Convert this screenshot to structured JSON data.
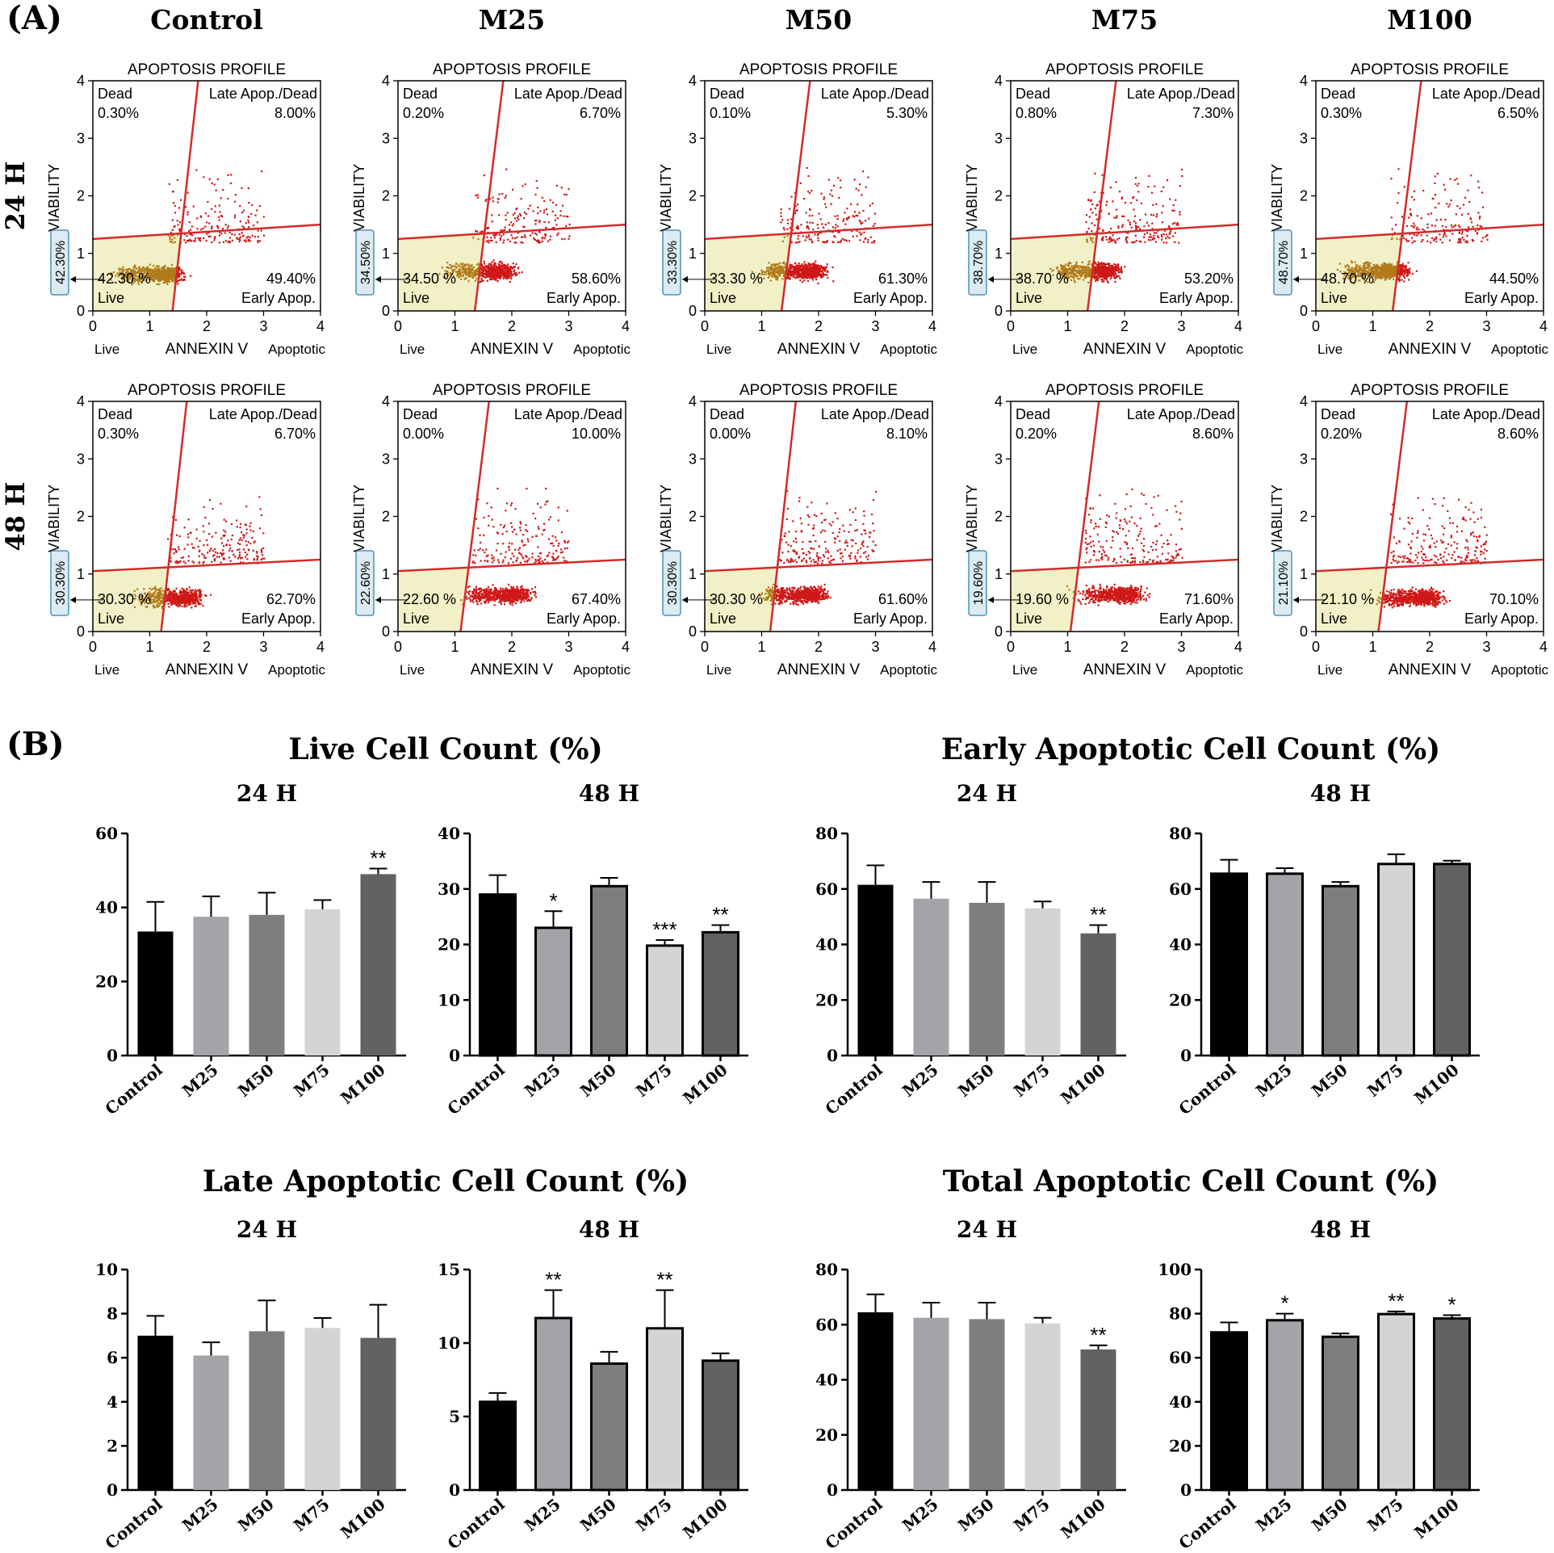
{
  "panel_a": {
    "label": "(A)",
    "columns": [
      "Control",
      "M25",
      "M50",
      "M75",
      "M100"
    ],
    "rows": [
      "24 H",
      "48 H"
    ],
    "plot_title": "APOPTOSIS PROFILE",
    "x_axis_label": "ANNEXIN V",
    "y_axis_label": "VIABILITY",
    "x_left_label": "Live",
    "x_right_label": "Apoptotic",
    "quadrant_names": {
      "ul": "Dead",
      "ur": "Late Apop./Dead",
      "ll": "Live",
      "lr": "Early Apop."
    },
    "ticks": [
      "0",
      "1",
      "2",
      "3",
      "4"
    ]
  },
  "panel_b": {
    "label": "(B)",
    "titles": {
      "live": "Live Cell Count (%)",
      "early": "Early Apoptotic Cell Count (%)",
      "late": "Late Apoptotic Cell Count (%)",
      "total": "Total Apoptotic Cell Count (%)"
    },
    "subtitles": [
      "24 H",
      "48 H"
    ]
  },
  "colors": {
    "gate_line": "#d42a2a",
    "dot": "#d01818",
    "live_fill": "#f2f0c6",
    "bars": [
      "#000000",
      "#a3a3a8",
      "#7e7e7e",
      "#d4d4d4",
      "#626262"
    ]
  },
  "chart_data": [
    {
      "type": "scatter",
      "panel": "A",
      "row": "24 H",
      "column": "Control",
      "title": "APOPTOSIS PROFILE",
      "xlabel": "ANNEXIN V",
      "ylabel": "VIABILITY",
      "xlim": [
        0,
        4
      ],
      "ylim": [
        0,
        4
      ],
      "quadrants": {
        "dead": "0.30%",
        "late": "8.00%",
        "live": "42.30 %",
        "early": "49.40%"
      },
      "live_box": "42.30%",
      "gate": {
        "v_bottom": 1.4,
        "v_top": 1.85,
        "h_left": 1.25,
        "h_right": 1.5
      },
      "cluster": [
        1.25,
        0.65
      ]
    },
    {
      "type": "scatter",
      "panel": "A",
      "row": "24 H",
      "column": "M25",
      "title": "APOPTOSIS PROFILE",
      "xlabel": "ANNEXIN V",
      "ylabel": "VIABILITY",
      "xlim": [
        0,
        4
      ],
      "ylim": [
        0,
        4
      ],
      "quadrants": {
        "dead": "0.20%",
        "late": "6.70%",
        "live": "34.50 %",
        "early": "58.60%"
      },
      "live_box": "34.50%",
      "gate": {
        "v_bottom": 1.35,
        "v_top": 1.85,
        "h_left": 1.25,
        "h_right": 1.5
      },
      "cluster": [
        1.7,
        0.7
      ]
    },
    {
      "type": "scatter",
      "panel": "A",
      "row": "24 H",
      "column": "M50",
      "title": "APOPTOSIS PROFILE",
      "xlabel": "ANNEXIN V",
      "ylabel": "VIABILITY",
      "xlim": [
        0,
        4
      ],
      "ylim": [
        0,
        4
      ],
      "quadrants": {
        "dead": "0.10%",
        "late": "5.30%",
        "live": "33.30 %",
        "early": "61.30%"
      },
      "live_box": "33.30%",
      "gate": {
        "v_bottom": 1.35,
        "v_top": 1.85,
        "h_left": 1.25,
        "h_right": 1.5
      },
      "cluster": [
        1.8,
        0.7
      ]
    },
    {
      "type": "scatter",
      "panel": "A",
      "row": "24 H",
      "column": "M75",
      "title": "APOPTOSIS PROFILE",
      "xlabel": "ANNEXIN V",
      "ylabel": "VIABILITY",
      "xlim": [
        0,
        4
      ],
      "ylim": [
        0,
        4
      ],
      "quadrants": {
        "dead": "0.80%",
        "late": "7.30%",
        "live": "38.70 %",
        "early": "53.20%"
      },
      "live_box": "38.70%",
      "gate": {
        "v_bottom": 1.35,
        "v_top": 1.85,
        "h_left": 1.25,
        "h_right": 1.5
      },
      "cluster": [
        1.6,
        0.7
      ]
    },
    {
      "type": "scatter",
      "panel": "A",
      "row": "24 H",
      "column": "M100",
      "title": "APOPTOSIS PROFILE",
      "xlabel": "ANNEXIN V",
      "ylabel": "VIABILITY",
      "xlim": [
        0,
        4
      ],
      "ylim": [
        0,
        4
      ],
      "quadrants": {
        "dead": "0.30%",
        "late": "6.50%",
        "live": "48.70 %",
        "early": "44.50%"
      },
      "live_box": "48.70%",
      "gate": {
        "v_bottom": 1.35,
        "v_top": 1.85,
        "h_left": 1.25,
        "h_right": 1.5
      },
      "cluster": [
        1.3,
        0.7
      ]
    },
    {
      "type": "scatter",
      "panel": "A",
      "row": "48 H",
      "column": "Control",
      "title": "APOPTOSIS PROFILE",
      "xlabel": "ANNEXIN V",
      "ylabel": "VIABILITY",
      "xlim": [
        0,
        4
      ],
      "ylim": [
        0,
        4
      ],
      "quadrants": {
        "dead": "0.30%",
        "late": "6.70%",
        "live": "30.30 %",
        "early": "62.70%"
      },
      "live_box": "30.30%",
      "gate": {
        "v_bottom": 1.2,
        "v_top": 1.65,
        "h_left": 1.05,
        "h_right": 1.25
      },
      "cluster": [
        1.6,
        0.6
      ]
    },
    {
      "type": "scatter",
      "panel": "A",
      "row": "48 H",
      "column": "M25",
      "title": "APOPTOSIS PROFILE",
      "xlabel": "ANNEXIN V",
      "ylabel": "VIABILITY",
      "xlim": [
        0,
        4
      ],
      "ylim": [
        0,
        4
      ],
      "quadrants": {
        "dead": "0.00%",
        "late": "10.00%",
        "live": "22.60 %",
        "early": "67.40%"
      },
      "live_box": "22.60%",
      "gate": {
        "v_bottom": 1.1,
        "v_top": 1.6,
        "h_left": 1.05,
        "h_right": 1.25
      },
      "cluster": [
        2.0,
        0.65
      ]
    },
    {
      "type": "scatter",
      "panel": "A",
      "row": "48 H",
      "column": "M50",
      "title": "APOPTOSIS PROFILE",
      "xlabel": "ANNEXIN V",
      "ylabel": "VIABILITY",
      "xlim": [
        0,
        4
      ],
      "ylim": [
        0,
        4
      ],
      "quadrants": {
        "dead": "0.00%",
        "late": "8.10%",
        "live": "30.30 %",
        "early": "61.60%"
      },
      "live_box": "30.30%",
      "gate": {
        "v_bottom": 1.15,
        "v_top": 1.6,
        "h_left": 1.05,
        "h_right": 1.25
      },
      "cluster": [
        1.8,
        0.65
      ]
    },
    {
      "type": "scatter",
      "panel": "A",
      "row": "48 H",
      "column": "M75",
      "title": "APOPTOSIS PROFILE",
      "xlabel": "ANNEXIN V",
      "ylabel": "VIABILITY",
      "xlim": [
        0,
        4
      ],
      "ylim": [
        0,
        4
      ],
      "quadrants": {
        "dead": "0.20%",
        "late": "8.60%",
        "live": "19.60 %",
        "early": "71.60%"
      },
      "live_box": "19.60%",
      "gate": {
        "v_bottom": 1.05,
        "v_top": 1.55,
        "h_left": 1.05,
        "h_right": 1.25
      },
      "cluster": [
        2.0,
        0.65
      ]
    },
    {
      "type": "scatter",
      "panel": "A",
      "row": "48 H",
      "column": "M100",
      "title": "APOPTOSIS PROFILE",
      "xlabel": "ANNEXIN V",
      "ylabel": "VIABILITY",
      "xlim": [
        0,
        4
      ],
      "ylim": [
        0,
        4
      ],
      "quadrants": {
        "dead": "0.20%",
        "late": "8.60%",
        "live": "21.10 %",
        "early": "70.10%"
      },
      "live_box": "21.10%",
      "gate": {
        "v_bottom": 1.1,
        "v_top": 1.6,
        "h_left": 1.05,
        "h_right": 1.25
      },
      "cluster": [
        1.9,
        0.6
      ]
    },
    {
      "type": "bar",
      "panel": "B",
      "group": "live",
      "subtitle": "24 H",
      "categories": [
        "Control",
        "M25",
        "M50",
        "M75",
        "M100"
      ],
      "values": [
        33.5,
        37.5,
        38,
        39.5,
        49
      ],
      "errors": [
        8,
        5.5,
        6,
        2.5,
        1.5
      ],
      "significance": [
        "",
        "",
        "",
        "",
        "**"
      ],
      "ylim": [
        0,
        60
      ],
      "yticks": [
        0,
        20,
        40,
        60
      ]
    },
    {
      "type": "bar",
      "panel": "B",
      "group": "live",
      "subtitle": "48 H",
      "categories": [
        "Control",
        "M25",
        "M50",
        "M75",
        "M100"
      ],
      "values": [
        29,
        23,
        30.5,
        19.8,
        22.2
      ],
      "errors": [
        3.5,
        3,
        1.5,
        1,
        1.3
      ],
      "significance": [
        "",
        "*",
        "",
        "***",
        "**"
      ],
      "ylim": [
        0,
        40
      ],
      "yticks": [
        0,
        10,
        20,
        30,
        40
      ]
    },
    {
      "type": "bar",
      "panel": "B",
      "group": "early",
      "subtitle": "24 H",
      "categories": [
        "Control",
        "M25",
        "M50",
        "M75",
        "M100"
      ],
      "values": [
        61.5,
        56.5,
        55,
        53,
        44
      ],
      "errors": [
        7,
        6,
        7.5,
        2.5,
        3
      ],
      "significance": [
        "",
        "",
        "",
        "",
        "**"
      ],
      "ylim": [
        0,
        80
      ],
      "yticks": [
        0,
        20,
        40,
        60,
        80
      ]
    },
    {
      "type": "bar",
      "panel": "B",
      "group": "early",
      "subtitle": "48 H",
      "categories": [
        "Control",
        "M25",
        "M50",
        "M75",
        "M100"
      ],
      "values": [
        65.5,
        65.5,
        61,
        69,
        69
      ],
      "errors": [
        5,
        2,
        1.5,
        3.5,
        1.2
      ],
      "significance": [
        "",
        "",
        "",
        "",
        ""
      ],
      "ylim": [
        0,
        80
      ],
      "yticks": [
        0,
        20,
        40,
        60,
        80
      ]
    },
    {
      "type": "bar",
      "panel": "B",
      "group": "late",
      "subtitle": "24 H",
      "categories": [
        "Control",
        "M25",
        "M50",
        "M75",
        "M100"
      ],
      "values": [
        7,
        6.1,
        7.2,
        7.35,
        6.9
      ],
      "errors": [
        0.9,
        0.6,
        1.4,
        0.45,
        1.5
      ],
      "significance": [
        "",
        "",
        "",
        "",
        ""
      ],
      "ylim": [
        0,
        10
      ],
      "yticks": [
        0,
        2,
        4,
        6,
        8,
        10
      ]
    },
    {
      "type": "bar",
      "panel": "B",
      "group": "late",
      "subtitle": "48 H",
      "categories": [
        "Control",
        "M25",
        "M50",
        "M75",
        "M100"
      ],
      "values": [
        6,
        11.7,
        8.6,
        11,
        8.8
      ],
      "errors": [
        0.6,
        1.9,
        0.8,
        2.6,
        0.5
      ],
      "significance": [
        "",
        "**",
        "",
        "**",
        ""
      ],
      "ylim": [
        0,
        15
      ],
      "yticks": [
        0,
        5,
        10,
        15
      ]
    },
    {
      "type": "bar",
      "panel": "B",
      "group": "total",
      "subtitle": "24 H",
      "categories": [
        "Control",
        "M25",
        "M50",
        "M75",
        "M100"
      ],
      "values": [
        64.5,
        62.5,
        62,
        60.5,
        51
      ],
      "errors": [
        6.5,
        5.5,
        6,
        2,
        1.5
      ],
      "significance": [
        "",
        "",
        "",
        "",
        "**"
      ],
      "ylim": [
        0,
        80
      ],
      "yticks": [
        0,
        20,
        40,
        60,
        80
      ]
    },
    {
      "type": "bar",
      "panel": "B",
      "group": "total",
      "subtitle": "48 H",
      "categories": [
        "Control",
        "M25",
        "M50",
        "M75",
        "M100"
      ],
      "values": [
        71.5,
        77,
        69.5,
        79.8,
        77.8
      ],
      "errors": [
        4.5,
        3,
        1.5,
        1.2,
        1.5
      ],
      "significance": [
        "",
        "*",
        "",
        "**",
        "*"
      ],
      "ylim": [
        0,
        100
      ],
      "yticks": [
        0,
        20,
        40,
        60,
        80,
        100
      ]
    }
  ]
}
